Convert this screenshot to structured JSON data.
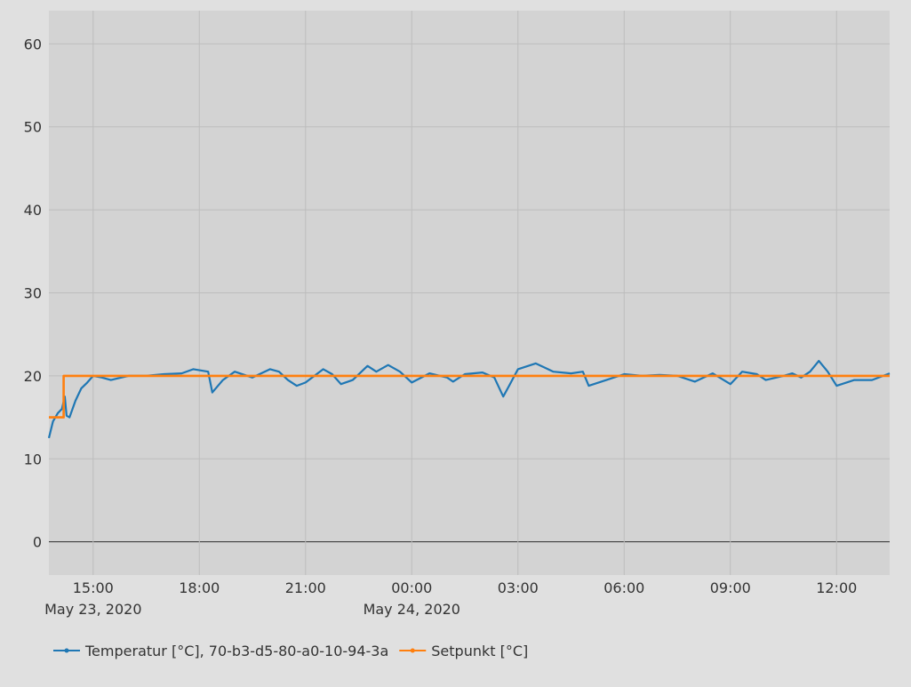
{
  "colors": {
    "page_background": "#e0e0e0",
    "plot_background": "#d3d3d3",
    "grid": "#bdbdbd",
    "zero_line": "#2b2b2b",
    "temperature": "#1f77b4",
    "setpoint": "#ff7f0e"
  },
  "chart_data": {
    "type": "line",
    "title": "",
    "xlabel": "",
    "ylabel": "",
    "grid": true,
    "legend_position": "bottom-left",
    "ylim": [
      -4,
      64
    ],
    "xlim": [
      "2020-05-23 13:45",
      "2020-05-24 13:30"
    ],
    "y_ticks": [
      "0",
      "10",
      "20",
      "30",
      "40",
      "50",
      "60"
    ],
    "x_ticks": [
      {
        "time": "2020-05-23 15:00",
        "label": "15:00",
        "date_label": "May 23, 2020"
      },
      {
        "time": "2020-05-23 18:00",
        "label": "18:00",
        "date_label": ""
      },
      {
        "time": "2020-05-23 21:00",
        "label": "21:00",
        "date_label": ""
      },
      {
        "time": "2020-05-24 00:00",
        "label": "00:00",
        "date_label": "May 24, 2020"
      },
      {
        "time": "2020-05-24 03:00",
        "label": "03:00",
        "date_label": ""
      },
      {
        "time": "2020-05-24 06:00",
        "label": "06:00",
        "date_label": ""
      },
      {
        "time": "2020-05-24 09:00",
        "label": "09:00",
        "date_label": ""
      },
      {
        "time": "2020-05-24 12:00",
        "label": "12:00",
        "date_label": ""
      }
    ],
    "series": [
      {
        "name": "Temperatur [°C], 70-b3-d5-80-a0-10-94-3a",
        "color": "#1f77b4",
        "x": [
          "2020-05-23 13:45",
          "2020-05-23 13:52",
          "2020-05-23 14:00",
          "2020-05-23 14:07",
          "2020-05-23 14:12",
          "2020-05-23 14:15",
          "2020-05-23 14:20",
          "2020-05-23 14:30",
          "2020-05-23 14:40",
          "2020-05-23 14:50",
          "2020-05-23 15:00",
          "2020-05-23 15:15",
          "2020-05-23 15:30",
          "2020-05-23 16:00",
          "2020-05-23 16:30",
          "2020-05-23 17:00",
          "2020-05-23 17:30",
          "2020-05-23 17:50",
          "2020-05-23 18:15",
          "2020-05-23 18:22",
          "2020-05-23 18:40",
          "2020-05-23 19:00",
          "2020-05-23 19:30",
          "2020-05-23 20:00",
          "2020-05-23 20:15",
          "2020-05-23 20:30",
          "2020-05-23 20:45",
          "2020-05-23 21:00",
          "2020-05-23 21:30",
          "2020-05-23 21:45",
          "2020-05-23 22:00",
          "2020-05-23 22:20",
          "2020-05-23 22:45",
          "2020-05-23 23:00",
          "2020-05-23 23:20",
          "2020-05-23 23:40",
          "2020-05-24 00:00",
          "2020-05-24 00:30",
          "2020-05-24 01:00",
          "2020-05-24 01:10",
          "2020-05-24 01:30",
          "2020-05-24 02:00",
          "2020-05-24 02:20",
          "2020-05-24 02:35",
          "2020-05-24 02:45",
          "2020-05-24 03:00",
          "2020-05-24 03:30",
          "2020-05-24 03:45",
          "2020-05-24 04:00",
          "2020-05-24 04:30",
          "2020-05-24 04:50",
          "2020-05-24 05:00",
          "2020-05-24 05:30",
          "2020-05-24 06:00",
          "2020-05-24 06:30",
          "2020-05-24 07:00",
          "2020-05-24 07:30",
          "2020-05-24 08:00",
          "2020-05-24 08:30",
          "2020-05-24 09:00",
          "2020-05-24 09:20",
          "2020-05-24 09:45",
          "2020-05-24 10:00",
          "2020-05-24 10:30",
          "2020-05-24 10:45",
          "2020-05-24 11:00",
          "2020-05-24 11:15",
          "2020-05-24 11:30",
          "2020-05-24 11:45",
          "2020-05-24 12:00",
          "2020-05-24 12:30",
          "2020-05-24 13:00",
          "2020-05-24 13:30"
        ],
        "y": [
          12.5,
          14.5,
          15.5,
          16,
          17.5,
          15.2,
          15,
          17,
          18.5,
          19.2,
          20,
          19.8,
          19.5,
          20,
          20,
          20.2,
          20.3,
          20.8,
          20.5,
          18,
          19.5,
          20.5,
          19.8,
          20.8,
          20.5,
          19.5,
          18.8,
          19.2,
          20.8,
          20.2,
          19,
          19.5,
          21.2,
          20.5,
          21.3,
          20.5,
          19.2,
          20.3,
          19.8,
          19.3,
          20.2,
          20.4,
          19.8,
          17.5,
          18.8,
          20.8,
          21.5,
          21,
          20.5,
          20.3,
          20.5,
          18.8,
          19.5,
          20.2,
          20,
          20.1,
          20,
          19.3,
          20.3,
          19,
          20.5,
          20.2,
          19.5,
          20,
          20.3,
          19.8,
          20.5,
          21.8,
          20.5,
          18.8,
          19.5,
          19.5,
          20.3
        ]
      },
      {
        "name": "Setpunkt [°C]",
        "color": "#ff7f0e",
        "x": [
          "2020-05-23 13:45",
          "2020-05-23 14:10",
          "2020-05-23 14:10",
          "2020-05-24 13:30"
        ],
        "y": [
          15,
          15,
          20,
          20
        ]
      }
    ]
  }
}
